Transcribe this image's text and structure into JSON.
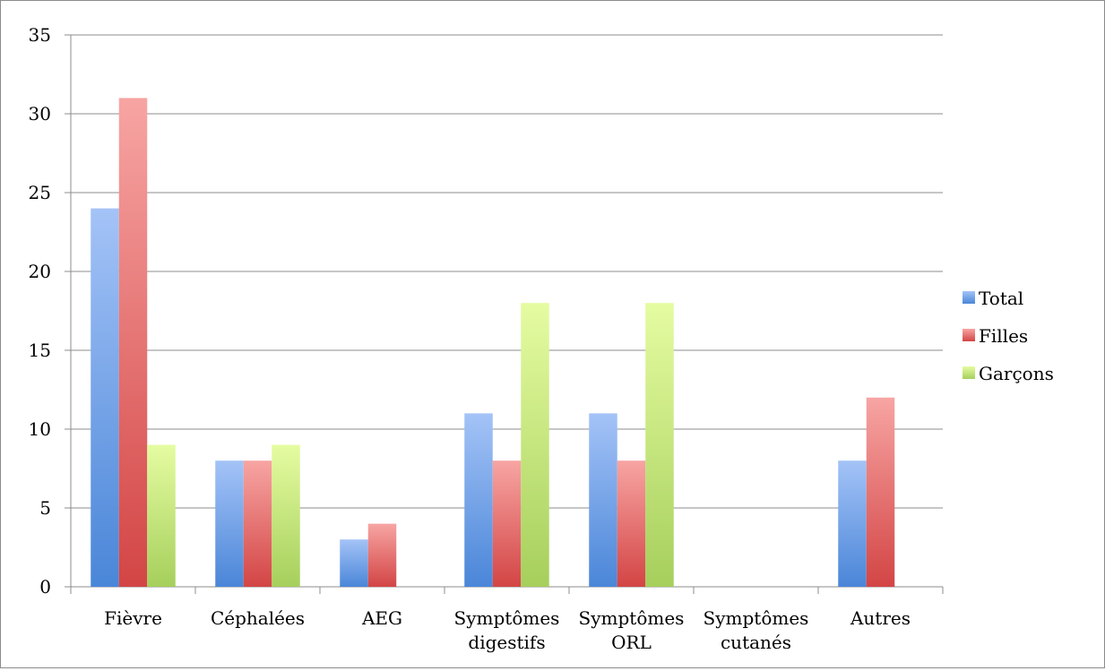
{
  "chart_data": {
    "type": "bar",
    "title": "",
    "xlabel": "",
    "ylabel": "",
    "ylim": [
      0,
      35
    ],
    "yticks": [
      0,
      5,
      10,
      15,
      20,
      25,
      30,
      35
    ],
    "grid": true,
    "legend_position": "right",
    "categories": [
      [
        "Fièvre"
      ],
      [
        "Céphalées"
      ],
      [
        "AEG"
      ],
      [
        "Symptômes",
        "digestifs"
      ],
      [
        "Symptômes",
        "ORL"
      ],
      [
        "Symptômes",
        "cutanés"
      ],
      [
        "Autres"
      ]
    ],
    "series": [
      {
        "name": "Total",
        "values": [
          24,
          8,
          3,
          11,
          11,
          0,
          8
        ],
        "color": "#4a86d8",
        "color_light": "#a4c3f7"
      },
      {
        "name": "Filles",
        "values": [
          31,
          8,
          4,
          8,
          8,
          0,
          12
        ],
        "color": "#d34545",
        "color_light": "#f7a5a3"
      },
      {
        "name": "Garçons",
        "values": [
          9,
          9,
          0,
          18,
          18,
          0,
          0
        ],
        "color": "#a6cf5c",
        "color_light": "#e5fca1"
      }
    ]
  }
}
